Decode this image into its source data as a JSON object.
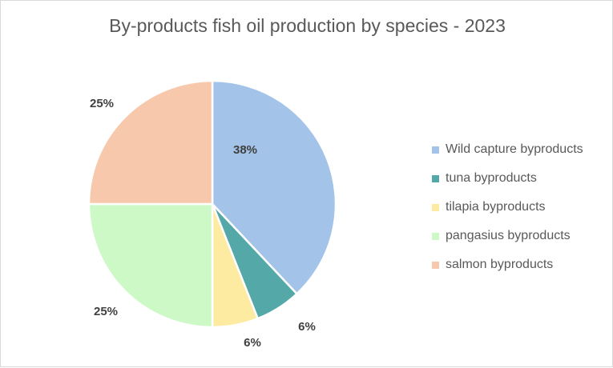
{
  "chart_data": {
    "type": "pie",
    "title": "By-products fish oil production by species - 2023",
    "categories": [
      "Wild capture byproducts",
      "tuna byproducts",
      "tilapia byproducts",
      "pangasius byproducts",
      "salmon byproducts"
    ],
    "values": [
      38,
      6,
      6,
      25,
      25
    ],
    "data_labels": [
      "38%",
      "6%",
      "6%",
      "25%",
      "25%"
    ],
    "colors": [
      "#a3c4e8",
      "#54a9a8",
      "#fdeba1",
      "#ccf9c5",
      "#f8c8ad"
    ],
    "legend_position": "right"
  }
}
